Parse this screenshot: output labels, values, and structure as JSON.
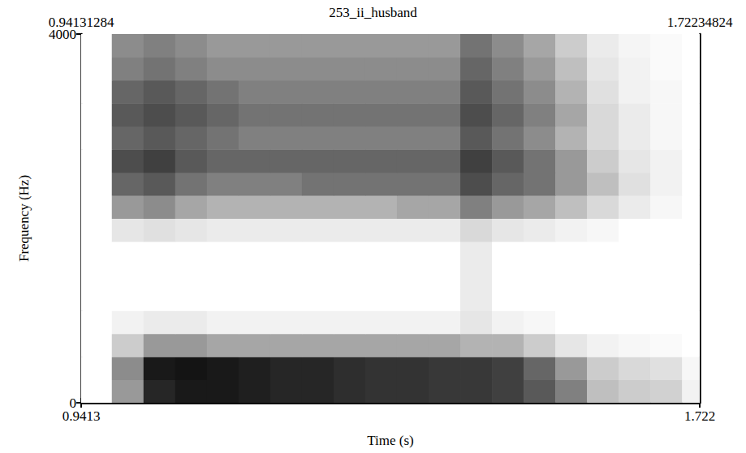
{
  "chart_data": {
    "type": "heatmap",
    "title": "253_ii_husband",
    "xlabel": "Time (s)",
    "ylabel": "Frequency (Hz)",
    "xlim": [
      0.94131284,
      1.72234824
    ],
    "ylim": [
      0,
      4000
    ],
    "xticks": [
      {
        "value": 0.94131284,
        "label": "0.9413"
      },
      {
        "value": 1.72234824,
        "label": "1.722"
      }
    ],
    "x2ticks": [
      0.94131284,
      1.72234824
    ],
    "yticks": [
      0,
      4000
    ],
    "time_edges": [
      0.94,
      0.98,
      1.02,
      1.06,
      1.1,
      1.14,
      1.18,
      1.22,
      1.26,
      1.3,
      1.34,
      1.38,
      1.42,
      1.46,
      1.5,
      1.54,
      1.58,
      1.62,
      1.66,
      1.7,
      1.74
    ],
    "freq_edges": [
      0,
      250,
      500,
      750,
      1000,
      1250,
      1500,
      1750,
      2000,
      2250,
      2500,
      2750,
      3000,
      3250,
      3500,
      3750,
      4000
    ],
    "zlim": [
      0,
      100
    ],
    "intensity": [
      [
        0,
        40,
        85,
        90,
        90,
        88,
        85,
        85,
        82,
        80,
        80,
        78,
        78,
        75,
        65,
        50,
        25,
        20,
        18,
        5
      ],
      [
        0,
        45,
        90,
        92,
        90,
        88,
        85,
        85,
        82,
        80,
        80,
        78,
        78,
        75,
        60,
        40,
        20,
        15,
        12,
        3
      ],
      [
        0,
        20,
        40,
        40,
        35,
        35,
        35,
        35,
        35,
        35,
        35,
        35,
        30,
        30,
        20,
        10,
        5,
        3,
        2,
        0
      ],
      [
        0,
        5,
        8,
        8,
        5,
        5,
        5,
        5,
        5,
        5,
        5,
        5,
        10,
        5,
        3,
        0,
        0,
        0,
        0,
        0
      ],
      [
        0,
        0,
        0,
        0,
        0,
        0,
        0,
        0,
        0,
        0,
        0,
        0,
        8,
        0,
        0,
        0,
        0,
        0,
        0,
        0
      ],
      [
        0,
        0,
        0,
        0,
        0,
        0,
        0,
        0,
        0,
        0,
        0,
        0,
        8,
        0,
        0,
        0,
        0,
        0,
        0,
        0
      ],
      [
        0,
        0,
        0,
        0,
        0,
        0,
        0,
        0,
        0,
        0,
        0,
        0,
        8,
        0,
        0,
        0,
        0,
        0,
        0,
        0
      ],
      [
        0,
        10,
        12,
        10,
        8,
        8,
        8,
        8,
        8,
        8,
        8,
        8,
        15,
        10,
        8,
        5,
        3,
        0,
        0,
        0
      ],
      [
        0,
        40,
        45,
        35,
        30,
        30,
        30,
        30,
        30,
        30,
        35,
        35,
        50,
        40,
        35,
        25,
        15,
        8,
        3,
        0
      ],
      [
        0,
        60,
        65,
        55,
        50,
        50,
        50,
        55,
        55,
        55,
        55,
        55,
        70,
        60,
        55,
        40,
        25,
        12,
        5,
        0
      ],
      [
        0,
        70,
        75,
        65,
        60,
        60,
        60,
        60,
        60,
        60,
        60,
        60,
        75,
        65,
        55,
        40,
        20,
        10,
        5,
        0
      ],
      [
        0,
        60,
        65,
        60,
        55,
        50,
        50,
        50,
        50,
        50,
        50,
        50,
        65,
        55,
        45,
        30,
        15,
        8,
        3,
        0
      ],
      [
        0,
        65,
        70,
        65,
        60,
        55,
        55,
        55,
        55,
        55,
        55,
        55,
        70,
        60,
        50,
        35,
        15,
        8,
        3,
        0
      ],
      [
        0,
        60,
        65,
        60,
        55,
        50,
        50,
        50,
        50,
        50,
        50,
        50,
        65,
        55,
        45,
        30,
        12,
        5,
        3,
        0
      ],
      [
        0,
        50,
        55,
        50,
        45,
        45,
        45,
        45,
        45,
        45,
        45,
        45,
        60,
        50,
        40,
        25,
        10,
        5,
        2,
        0
      ],
      [
        0,
        45,
        50,
        45,
        40,
        40,
        40,
        40,
        40,
        40,
        40,
        40,
        55,
        45,
        35,
        20,
        8,
        4,
        2,
        0
      ]
    ]
  }
}
